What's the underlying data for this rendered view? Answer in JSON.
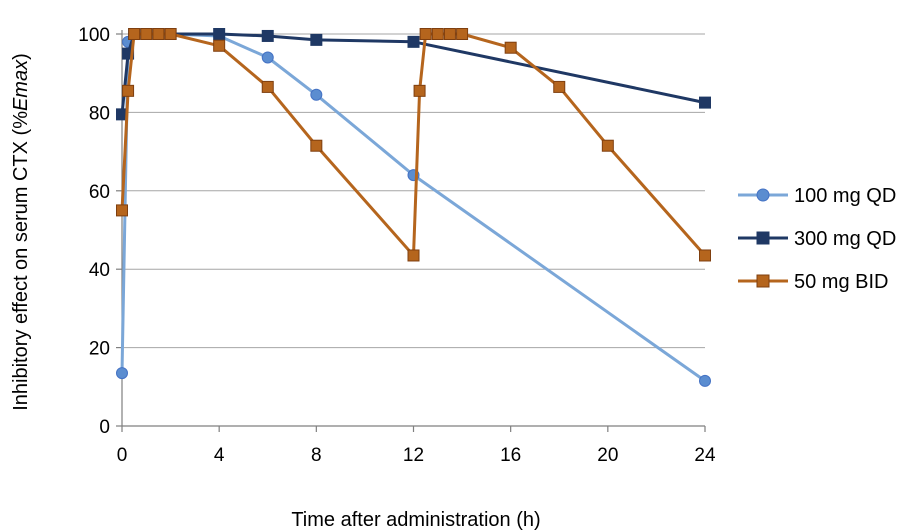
{
  "chart_data": {
    "type": "line",
    "title": "",
    "xlabel": "Time after administration (h)",
    "ylabel_main": "Inhibitory effect on serum CTX (%",
    "ylabel_italic": "Emax",
    "ylabel_close": ")",
    "xlim": [
      0,
      24
    ],
    "ylim": [
      0,
      100
    ],
    "xticks": [
      0,
      4,
      8,
      12,
      16,
      20,
      24
    ],
    "yticks": [
      0,
      20,
      40,
      60,
      80,
      100
    ],
    "grid": "horizontal",
    "legend_position": "right",
    "series": [
      {
        "name": "100 mg QD",
        "marker": "circle",
        "line_color": "#7BA7D8",
        "fill_color": "#5B8DD0",
        "edge_color": "#4472C4",
        "x": [
          0,
          0.25,
          0.5,
          1,
          2,
          4,
          6,
          8,
          12,
          24
        ],
        "y": [
          13.5,
          98,
          100,
          100,
          100,
          99.5,
          94,
          84.5,
          64,
          11.5
        ]
      },
      {
        "name": "300 mg QD",
        "marker": "square",
        "line_color": "#1F3864",
        "fill_color": "#1F3864",
        "edge_color": "#1F3864",
        "x": [
          0,
          0.25,
          0.5,
          1,
          2,
          4,
          6,
          8,
          12,
          24
        ],
        "y": [
          79.5,
          95,
          100,
          100,
          100,
          100,
          99.5,
          98.5,
          98,
          82.5
        ]
      },
      {
        "name": "50 mg BID",
        "marker": "square",
        "line_color": "#B5651D",
        "fill_color": "#B5651D",
        "edge_color": "#7F3F0F",
        "x": [
          0,
          0.25,
          0.5,
          1,
          1.5,
          2,
          4,
          6,
          8,
          12,
          12.25,
          12.5,
          13,
          13.5,
          14,
          16,
          18,
          20,
          24
        ],
        "y": [
          55,
          85.5,
          100,
          100,
          100,
          100,
          97,
          86.5,
          71.5,
          43.5,
          85.5,
          100,
          100,
          100,
          100,
          96.5,
          86.5,
          71.5,
          43.5
        ]
      }
    ]
  }
}
